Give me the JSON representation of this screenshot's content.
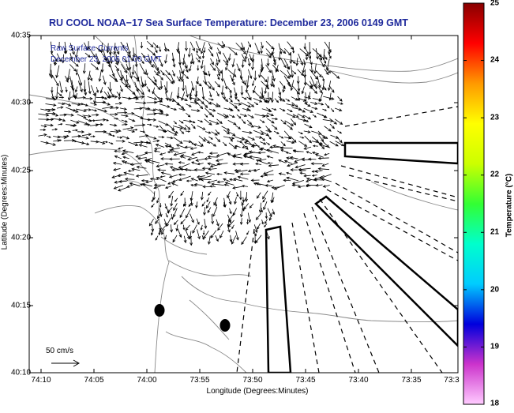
{
  "title": "RU COOL  NOAA−17  Sea Surface Temperature:  December 23, 2006 0149 GMT",
  "inset": {
    "line1": "Raw Surface Currents",
    "line2": "December 23, 2006 01:00 GMT"
  },
  "x_axis": {
    "label": "Longitude (Degrees:Minutes)",
    "ticks": [
      "74:10",
      "74:05",
      "74:00",
      "73:55",
      "73:50",
      "73:45",
      "73:40",
      "73:35",
      "73:3"
    ]
  },
  "y_axis": {
    "label": "Latitude (Degrees:Minutes)",
    "ticks": [
      "40:35",
      "40:30",
      "40:25",
      "40:20",
      "40:15",
      "40:10"
    ]
  },
  "colorbar": {
    "label": "Temperature (°C)",
    "ticks": [
      "25",
      "24",
      "23",
      "22",
      "21",
      "20",
      "19",
      "18"
    ],
    "range": [
      18,
      25
    ],
    "colors": [
      "#ffccff",
      "#cc33cc",
      "#0000dd",
      "#00ccff",
      "#00ffcc",
      "#33ff33",
      "#ccff00",
      "#ffff00",
      "#ff9900",
      "#ff0000",
      "#880000"
    ]
  },
  "scale_arrow": {
    "label": "50 cm/s"
  },
  "colors": {
    "title_text": "#1f2a9c",
    "coastline": "#888888",
    "vectors": "#000000"
  }
}
